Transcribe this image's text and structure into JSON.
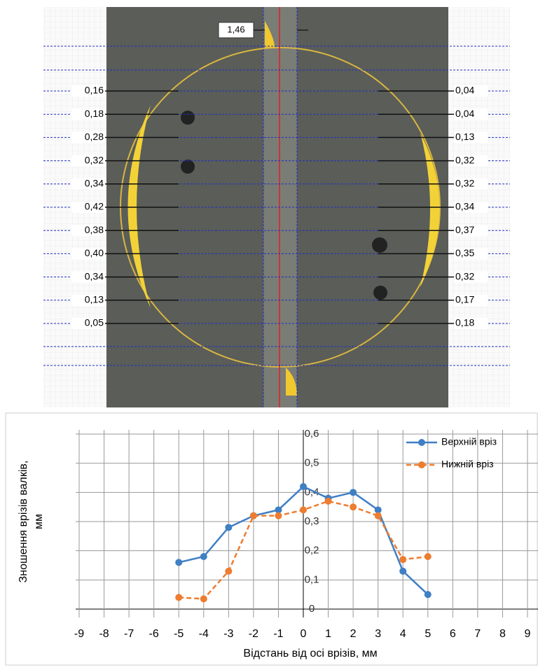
{
  "photo": {
    "top_label": "1,46",
    "left_labels": [
      "0,16",
      "0,18",
      "0,28",
      "0,32",
      "0,34",
      "0,42",
      "0,38",
      "0,40",
      "0,34",
      "0,13",
      "0,05"
    ],
    "right_labels": [
      "0,04",
      "0,04",
      "0,13",
      "0,32",
      "0,32",
      "0,34",
      "0,37",
      "0,35",
      "0,32",
      "0,17",
      "0,18"
    ]
  },
  "chart_data": {
    "type": "line",
    "x_label": "Відстань від осі врізів, мм",
    "y_label": [
      "Зношення  врізів валків,",
      "мм"
    ],
    "x": [
      -5,
      -4,
      -3,
      -2,
      -1,
      0,
      1,
      2,
      3,
      4,
      5
    ],
    "series": [
      {
        "name": "Верхній вріз",
        "color": "#3f7fc4",
        "linestyle": "solid",
        "values": [
          0.16,
          0.18,
          0.28,
          0.32,
          0.34,
          0.42,
          0.38,
          0.4,
          0.34,
          0.13,
          0.05
        ]
      },
      {
        "name": "Нижній вріз",
        "color": "#ed7d31",
        "linestyle": "dashed",
        "values": [
          0.04,
          0.035,
          0.13,
          0.32,
          0.32,
          0.34,
          0.37,
          0.35,
          0.32,
          0.17,
          0.18
        ]
      }
    ],
    "xlim": [
      -9,
      9
    ],
    "xticks": [
      -9,
      -8,
      -7,
      -6,
      -5,
      -4,
      -3,
      -2,
      -1,
      0,
      1,
      2,
      3,
      4,
      5,
      6,
      7,
      8,
      9
    ],
    "ylim": [
      0,
      0.6
    ],
    "yticks": [
      0,
      {
        "value": 0.1,
        "label": "0,1"
      },
      {
        "value": 0.2,
        "label": "0,2"
      },
      {
        "value": 0.3,
        "label": "0,3"
      },
      {
        "value": 0.4,
        "label": "0,4"
      },
      {
        "value": 0.5,
        "label": "0,5"
      },
      {
        "value": 0.6,
        "label": "0,6"
      }
    ],
    "grid": true,
    "legend": "top-right"
  }
}
